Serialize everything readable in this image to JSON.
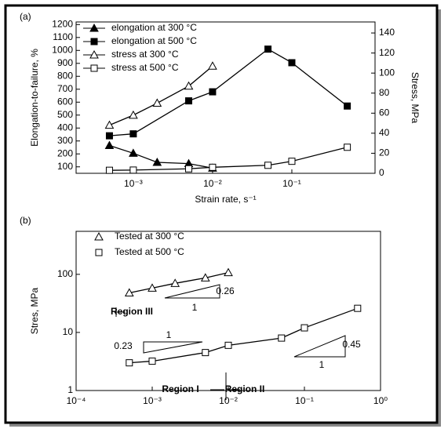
{
  "chart_data": [
    {
      "type": "line",
      "panel": "(a)",
      "xlabel": "Strain rate, s⁻¹",
      "ylabel": "Elongation-to-failure, %",
      "y2label": "Stress, MPa",
      "xlog": true,
      "xlim": [
        0.00019,
        1.12
      ],
      "xticks": [
        {
          "value": 0.001,
          "label": "10⁻³"
        },
        {
          "value": 0.01,
          "label": "10⁻²"
        },
        {
          "value": 0.1,
          "label": "10⁻¹"
        }
      ],
      "ylim": [
        50,
        1220
      ],
      "yticks": [
        100,
        200,
        300,
        400,
        500,
        600,
        700,
        800,
        900,
        1000,
        1100,
        1200
      ],
      "y2lim": [
        0,
        151
      ],
      "y2ticks": [
        0,
        20,
        40,
        60,
        80,
        100,
        120,
        140
      ],
      "series": [
        {
          "name": "elongation at 300 °C",
          "color": "#000000",
          "marker": "triangle",
          "filled": true,
          "x": [
            0.0005,
            0.001,
            0.002,
            0.005,
            0.01
          ],
          "values": [
            265,
            205,
            135,
            125,
            90
          ]
        },
        {
          "name": "elongation at 500 °C",
          "color": "#000000",
          "marker": "square",
          "filled": true,
          "x": [
            0.0005,
            0.001,
            0.005,
            0.01,
            0.05,
            0.1,
            0.5
          ],
          "values": [
            340,
            355,
            610,
            680,
            1010,
            905,
            570
          ]
        },
        {
          "name": "stress at 300 °C",
          "color": "#000000",
          "marker": "triangle",
          "filled": false,
          "axis": "y2",
          "x": [
            0.0005,
            0.001,
            0.002,
            0.005,
            0.01
          ],
          "values": [
            48,
            58,
            70,
            87,
            107
          ]
        },
        {
          "name": "stress at 500 °C",
          "color": "#000000",
          "marker": "square",
          "filled": false,
          "axis": "y2",
          "x": [
            0.0005,
            0.001,
            0.005,
            0.01,
            0.05,
            0.1,
            0.5
          ],
          "values": [
            3,
            3.2,
            4.5,
            6,
            8,
            12,
            26
          ]
        }
      ]
    },
    {
      "type": "scatter",
      "panel": "(b)",
      "ylabel": "Stres, MPa",
      "xlog": true,
      "ylog": true,
      "xlim": [
        0.0001,
        1
      ],
      "xticks": [
        {
          "value": 0.0001,
          "label": "10⁻⁴"
        },
        {
          "value": 0.001,
          "label": "10⁻³"
        },
        {
          "value": 0.01,
          "label": "10⁻²"
        },
        {
          "value": 0.1,
          "label": "10⁻¹"
        },
        {
          "value": 1,
          "label": "10⁰"
        }
      ],
      "ylim": [
        1,
        550
      ],
      "yticks": [
        1,
        10,
        100
      ],
      "series": [
        {
          "name": "Tested at 300 °C",
          "color": "#000000",
          "marker": "triangle",
          "filled": false,
          "x": [
            0.0005,
            0.001,
            0.002,
            0.005,
            0.01
          ],
          "values": [
            48,
            58,
            70,
            87,
            107
          ]
        },
        {
          "name": "Tested at 500 °C",
          "color": "#000000",
          "marker": "square",
          "filled": false,
          "x": [
            0.0005,
            0.001,
            0.005,
            0.01,
            0.05,
            0.1,
            0.5
          ],
          "values": [
            3,
            3.2,
            4.5,
            6,
            8,
            12,
            26
          ]
        }
      ],
      "annotations": [
        "Region III",
        "0.26",
        "1",
        "0.23",
        "1",
        "0.45",
        "1",
        "Region I",
        "Region II"
      ]
    }
  ]
}
